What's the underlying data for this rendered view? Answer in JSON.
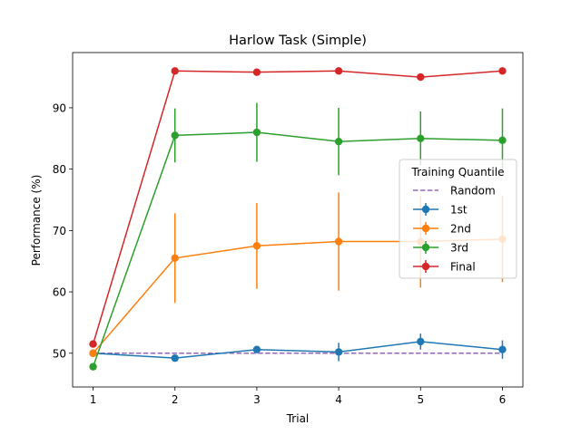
{
  "chart_data": {
    "type": "line",
    "title": "Harlow Task (Simple)",
    "xlabel": "Trial",
    "ylabel": "Performance (%)",
    "x": [
      1,
      2,
      3,
      4,
      5,
      6
    ],
    "xlim": [
      0.75,
      6.25
    ],
    "ylim": [
      44.5,
      99
    ],
    "xticks": [
      1,
      2,
      3,
      4,
      5,
      6
    ],
    "yticks": [
      50,
      60,
      70,
      80,
      90
    ],
    "grid": false,
    "legend": {
      "title": "Training Quantile",
      "placement": "center-right"
    },
    "reference": {
      "name": "Random",
      "value": 50,
      "color": "#9467bd",
      "style": "dashed"
    },
    "series": [
      {
        "name": "1st",
        "color": "#1f77b4",
        "values": [
          50.0,
          49.2,
          50.6,
          50.2,
          51.9,
          50.6
        ],
        "errors": [
          0.5,
          0.5,
          0.5,
          1.5,
          1.3,
          1.5
        ]
      },
      {
        "name": "2nd",
        "color": "#ff7f0e",
        "values": [
          50.0,
          65.5,
          67.5,
          68.2,
          68.2,
          68.6
        ],
        "errors": [
          0.6,
          7.3,
          7.0,
          8.0,
          7.5,
          7.0
        ]
      },
      {
        "name": "3rd",
        "color": "#2ca02c",
        "values": [
          47.8,
          85.5,
          86.0,
          84.5,
          85.0,
          84.7
        ],
        "errors": [
          0.5,
          4.4,
          4.8,
          5.5,
          4.4,
          5.2
        ]
      },
      {
        "name": "Final",
        "color": "#d62728",
        "values": [
          51.5,
          96.0,
          95.8,
          96.0,
          95.0,
          96.0
        ],
        "errors": [
          0.4,
          0.2,
          0.2,
          0.2,
          0.2,
          0.2
        ]
      }
    ]
  }
}
